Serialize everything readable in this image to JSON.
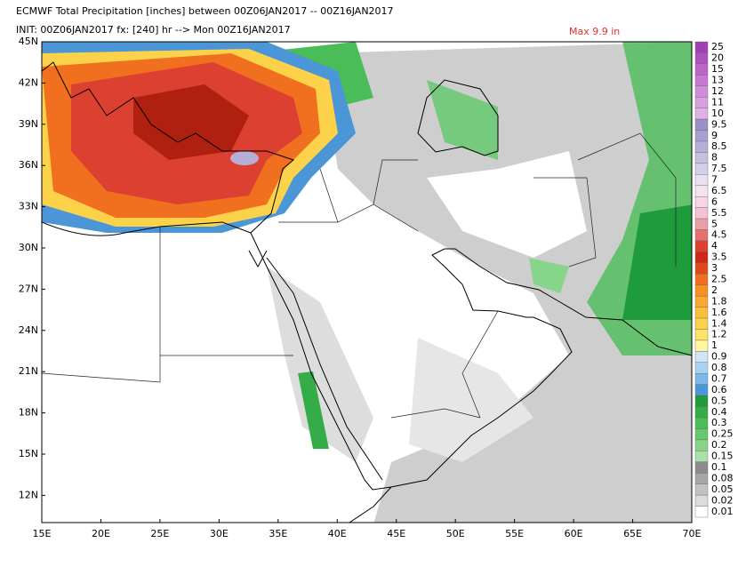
{
  "header": {
    "title": "ECMWF Total Precipitation [inches] between 00Z06JAN2017 -- 00Z16JAN2017",
    "init": "INIT: 00Z06JAN2017 fx: [240] hr --> Mon 00Z16JAN2017",
    "max": "Max 9.9 in"
  },
  "lat_labels": [
    "45N",
    "42N",
    "39N",
    "36N",
    "33N",
    "30N",
    "27N",
    "24N",
    "21N",
    "18N",
    "15N",
    "12N"
  ],
  "lon_labels": [
    "15E",
    "20E",
    "25E",
    "30E",
    "35E",
    "40E",
    "45E",
    "50E",
    "55E",
    "60E",
    "65E",
    "70E"
  ],
  "colorbar": {
    "labels": [
      "25",
      "20",
      "15",
      "13",
      "12",
      "11",
      "10",
      "9.5",
      "9",
      "8.5",
      "8",
      "7.5",
      "7",
      "6.5",
      "6",
      "5.5",
      "5",
      "4.5",
      "4",
      "3.5",
      "3",
      "2.5",
      "2",
      "1.8",
      "1.6",
      "1.4",
      "1.2",
      "1",
      "0.9",
      "0.8",
      "0.7",
      "0.6",
      "0.5",
      "0.4",
      "0.3",
      "0.25",
      "0.2",
      "0.15",
      "0.1",
      "0.08",
      "0.05",
      "0.02",
      "0.01"
    ],
    "colors": [
      "#a23fb5",
      "#b050c0",
      "#bd63c9",
      "#c878d2",
      "#d08cd9",
      "#d8a0e0",
      "#dfb2e6",
      "#9b8fc8",
      "#a99ed0",
      "#b7aed8",
      "#c5bfe0",
      "#d4cfe8",
      "#eae0f0",
      "#f4e4ef",
      "#f6d6e4",
      "#f2c2d4",
      "#e8a0a8",
      "#e47070",
      "#dc4030",
      "#d02818",
      "#e04a1a",
      "#f07020",
      "#f79020",
      "#f9a830",
      "#fbbe3a",
      "#fcd24a",
      "#fde466",
      "#fff6a0",
      "#cfe6f7",
      "#a9d2f0",
      "#7db8e6",
      "#4a96d6",
      "#1e9b3a",
      "#34ad48",
      "#4bbd58",
      "#66c96e",
      "#86d58a",
      "#a9e1a8",
      "#8c8c8c",
      "#a6a6a6",
      "#c2c2c2",
      "#dcdcdc",
      "#ffffff"
    ]
  }
}
